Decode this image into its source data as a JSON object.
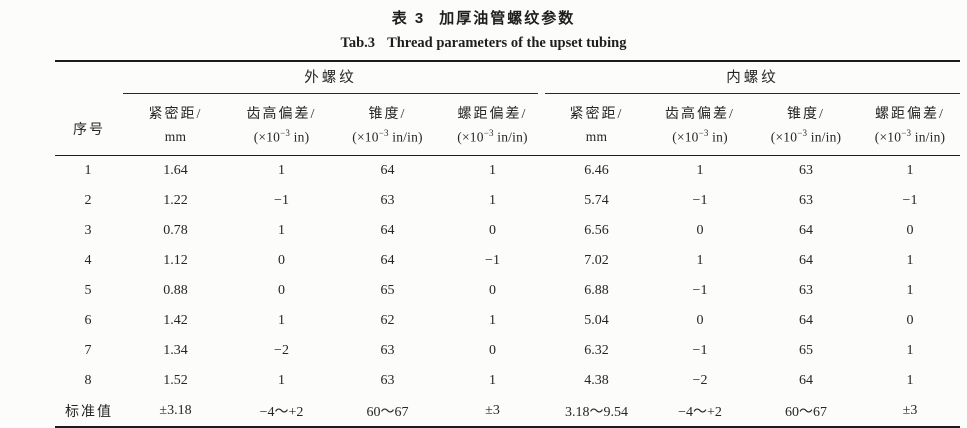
{
  "titles": {
    "zh_label": "表 3",
    "zh_text": "加厚油管螺纹参数",
    "en_label": "Tab.3",
    "en_text": "Thread parameters of the upset tubing"
  },
  "colors": {
    "text": "#262626",
    "rule": "#1c1c1c",
    "background": "#fcfcfb"
  },
  "table": {
    "index_header": "序号",
    "groups": [
      {
        "label": "外螺纹",
        "columns": [
          {
            "name": "紧密距/",
            "unit_pre": "mm",
            "unit_sup": "",
            "unit_post": ""
          },
          {
            "name": "齿高偏差/",
            "unit_pre": "(×10",
            "unit_sup": "−3",
            "unit_post": " in)"
          },
          {
            "name": "锥度/",
            "unit_pre": "(×10",
            "unit_sup": "−3",
            "unit_post": " in/in)"
          },
          {
            "name": "螺距偏差/",
            "unit_pre": "(×10",
            "unit_sup": "−3",
            "unit_post": " in/in)"
          }
        ]
      },
      {
        "label": "内螺纹",
        "columns": [
          {
            "name": "紧密距/",
            "unit_pre": "mm",
            "unit_sup": "",
            "unit_post": ""
          },
          {
            "name": "齿高偏差/",
            "unit_pre": "(×10",
            "unit_sup": "−3",
            "unit_post": " in)"
          },
          {
            "name": "锥度/",
            "unit_pre": "(×10",
            "unit_sup": "−3",
            "unit_post": " in/in)"
          },
          {
            "name": "螺距偏差/",
            "unit_pre": "(×10",
            "unit_sup": "−3",
            "unit_post": " in/in)"
          }
        ]
      }
    ],
    "rows": [
      {
        "index": "1",
        "values": [
          "1.64",
          "1",
          "64",
          "1",
          "6.46",
          "1",
          "63",
          "1"
        ]
      },
      {
        "index": "2",
        "values": [
          "1.22",
          "−1",
          "63",
          "1",
          "5.74",
          "−1",
          "63",
          "−1"
        ]
      },
      {
        "index": "3",
        "values": [
          "0.78",
          "1",
          "64",
          "0",
          "6.56",
          "0",
          "64",
          "0"
        ]
      },
      {
        "index": "4",
        "values": [
          "1.12",
          "0",
          "64",
          "−1",
          "7.02",
          "1",
          "64",
          "1"
        ]
      },
      {
        "index": "5",
        "values": [
          "0.88",
          "0",
          "65",
          "0",
          "6.88",
          "−1",
          "63",
          "1"
        ]
      },
      {
        "index": "6",
        "values": [
          "1.42",
          "1",
          "62",
          "1",
          "5.04",
          "0",
          "64",
          "0"
        ]
      },
      {
        "index": "7",
        "values": [
          "1.34",
          "−2",
          "63",
          "0",
          "6.32",
          "−1",
          "65",
          "1"
        ]
      },
      {
        "index": "8",
        "values": [
          "1.52",
          "1",
          "63",
          "1",
          "4.38",
          "−2",
          "64",
          "1"
        ]
      },
      {
        "index": "标准值",
        "values": [
          "±3.18",
          "−4～+2",
          "60～67",
          "±3",
          "3.18～9.54",
          "−4～+2",
          "60～67",
          "±3"
        ]
      }
    ]
  }
}
